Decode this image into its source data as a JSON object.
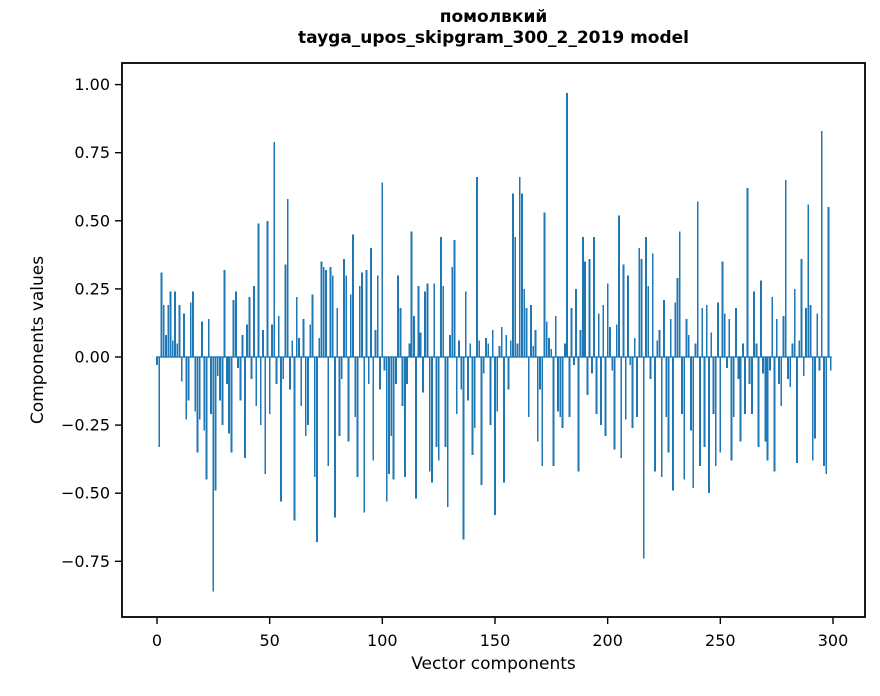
{
  "figure": {
    "background": "#ffffff"
  },
  "title": {
    "line1": "помолвкий",
    "line2": "tayga_upos_skipgram_300_2_2019 model"
  },
  "chart_data": {
    "type": "bar",
    "title": "помолвкий — tayga_upos_skipgram_300_2_2019 model",
    "xlabel": "Vector components",
    "ylabel": "Components values",
    "bar_color": "#1f77b4",
    "axis_color": "#000000",
    "n_components": 300,
    "xlim": [
      -15.5,
      314.2
    ],
    "ylim": [
      -0.95,
      1.08
    ],
    "grid": false,
    "legend": "none",
    "xticks": [
      0,
      50,
      100,
      150,
      200,
      250,
      300
    ],
    "xtick_labels": [
      "0",
      "50",
      "100",
      "150",
      "200",
      "250",
      "300"
    ],
    "yticks": [
      1.0,
      0.75,
      0.5,
      0.25,
      0.0,
      -0.25,
      -0.5,
      -0.75
    ],
    "ytick_labels": [
      "1.00",
      "0.75",
      "0.50",
      "0.25",
      "0.00",
      "−0.25",
      "−0.50",
      "−0.75"
    ],
    "values": [
      -0.03,
      -0.33,
      0.31,
      0.19,
      0.08,
      0.19,
      0.24,
      0.06,
      0.24,
      0.05,
      0.19,
      -0.09,
      0.16,
      -0.23,
      -0.16,
      0.2,
      0.24,
      -0.2,
      -0.35,
      -0.23,
      0.13,
      -0.27,
      -0.45,
      0.14,
      -0.21,
      -0.86,
      -0.49,
      -0.07,
      -0.16,
      -0.25,
      0.32,
      -0.1,
      -0.28,
      -0.35,
      0.21,
      0.24,
      -0.04,
      -0.16,
      0.08,
      -0.37,
      0.12,
      0.22,
      -0.08,
      0.26,
      -0.18,
      0.49,
      -0.25,
      0.1,
      -0.43,
      0.5,
      -0.21,
      0.12,
      0.79,
      -0.1,
      0.15,
      -0.53,
      -0.08,
      0.34,
      0.58,
      -0.12,
      0.06,
      -0.6,
      0.22,
      0.07,
      -0.18,
      0.14,
      -0.29,
      -0.25,
      0.12,
      0.23,
      -0.44,
      -0.68,
      0.07,
      0.35,
      0.33,
      0.32,
      -0.4,
      0.33,
      0.3,
      -0.59,
      0.18,
      -0.29,
      -0.08,
      0.36,
      0.3,
      -0.31,
      0.23,
      0.45,
      -0.22,
      -0.44,
      0.26,
      0.31,
      -0.57,
      0.32,
      -0.1,
      0.4,
      -0.38,
      0.1,
      0.3,
      -0.12,
      0.64,
      -0.05,
      -0.53,
      -0.43,
      -0.29,
      -0.45,
      -0.1,
      0.3,
      0.18,
      -0.18,
      -0.44,
      -0.1,
      0.05,
      0.46,
      0.15,
      -0.52,
      0.26,
      0.09,
      -0.13,
      0.24,
      0.27,
      -0.42,
      -0.46,
      0.27,
      -0.33,
      -0.38,
      0.44,
      0.26,
      -0.33,
      -0.55,
      0.08,
      0.33,
      0.43,
      -0.21,
      0.06,
      -0.12,
      -0.67,
      0.24,
      -0.16,
      0.05,
      -0.36,
      -0.26,
      0.66,
      0.06,
      -0.47,
      -0.06,
      0.07,
      0.05,
      -0.25,
      0.1,
      -0.58,
      -0.2,
      0.04,
      0.11,
      -0.46,
      0.08,
      -0.12,
      0.06,
      0.6,
      0.44,
      0.05,
      0.66,
      0.6,
      0.25,
      0.18,
      -0.22,
      0.19,
      0.04,
      0.1,
      -0.31,
      -0.12,
      -0.4,
      0.53,
      0.13,
      0.07,
      0.03,
      -0.4,
      0.15,
      -0.2,
      -0.22,
      -0.26,
      0.05,
      0.97,
      -0.22,
      0.18,
      -0.03,
      0.25,
      -0.42,
      0.1,
      0.44,
      0.35,
      -0.14,
      0.36,
      -0.06,
      0.44,
      -0.21,
      0.16,
      -0.25,
      0.19,
      -0.29,
      0.27,
      0.11,
      -0.05,
      -0.34,
      0.12,
      0.52,
      -0.37,
      0.34,
      -0.23,
      0.3,
      -0.03,
      -0.26,
      0.07,
      -0.22,
      0.4,
      0.36,
      -0.74,
      0.44,
      0.26,
      -0.08,
      0.38,
      -0.42,
      0.06,
      0.1,
      -0.44,
      0.21,
      -0.22,
      -0.35,
      0.14,
      -0.49,
      0.2,
      0.29,
      0.46,
      -0.21,
      -0.45,
      0.14,
      0.08,
      -0.27,
      -0.48,
      0.05,
      0.57,
      -0.4,
      0.18,
      -0.33,
      0.19,
      -0.5,
      0.09,
      -0.21,
      -0.4,
      0.2,
      -0.35,
      0.35,
      0.16,
      -0.04,
      0.14,
      -0.38,
      -0.22,
      0.18,
      -0.08,
      -0.31,
      0.05,
      -0.21,
      0.62,
      -0.1,
      -0.21,
      0.24,
      0.05,
      -0.33,
      0.28,
      -0.06,
      -0.31,
      -0.38,
      -0.05,
      0.22,
      -0.42,
      0.14,
      -0.1,
      -0.18,
      0.15,
      0.65,
      -0.08,
      -0.11,
      0.05,
      0.25,
      -0.39,
      0.06,
      0.36,
      -0.07,
      0.18,
      0.56,
      0.19,
      -0.38,
      -0.3,
      0.16,
      -0.05,
      0.83,
      -0.4,
      -0.43,
      0.55,
      -0.05
    ]
  }
}
